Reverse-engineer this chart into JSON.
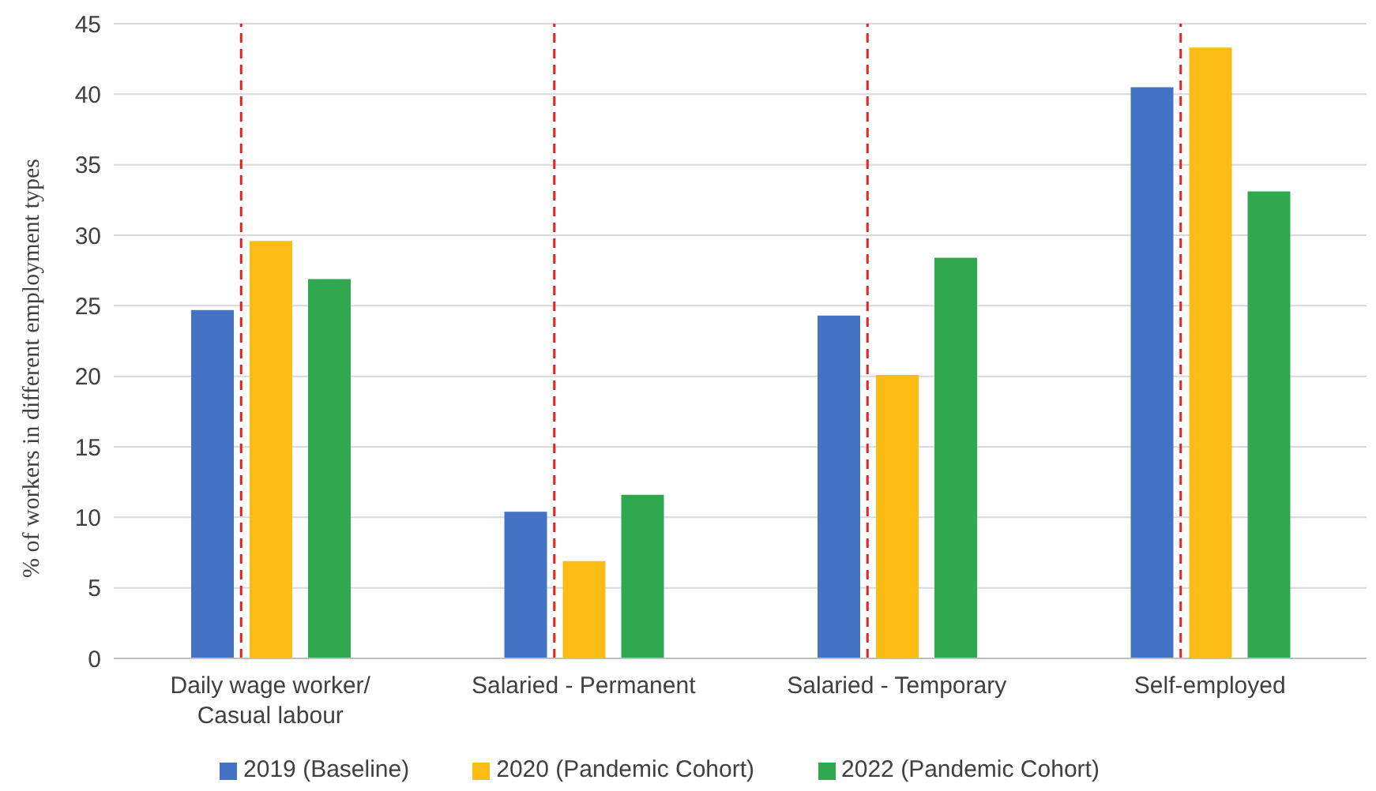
{
  "chart_data": {
    "type": "bar",
    "ylabel": "% of workers in different employment types",
    "categories": [
      "Daily wage worker/\nCasual labour",
      "Salaried - Permanent",
      "Salaried - Temporary",
      "Self-employed"
    ],
    "series": [
      {
        "name": "2019 (Baseline)",
        "color": "#4472c4",
        "values": [
          24.7,
          10.4,
          24.3,
          40.5
        ]
      },
      {
        "name": "2020 (Pandemic Cohort)",
        "color": "#fbbc15",
        "values": [
          29.6,
          6.9,
          20.1,
          43.3
        ]
      },
      {
        "name": "2022 (Pandemic Cohort)",
        "color": "#2fa84f",
        "values": [
          26.9,
          11.6,
          28.4,
          33.1
        ]
      }
    ],
    "ylim": [
      0,
      45
    ],
    "yticks": [
      0,
      5,
      10,
      15,
      20,
      25,
      30,
      35,
      40,
      45
    ],
    "grid": "y",
    "legend": "bottom",
    "ref_lines": [
      {
        "axis": "x",
        "value": "Daily wage worker/\nCasual labour",
        "color": "#e8211c",
        "line_style": "dashed"
      },
      {
        "axis": "x",
        "value": "Salaried - Permanent",
        "color": "#e8211c",
        "line_style": "dashed"
      },
      {
        "axis": "x",
        "value": "Salaried - Temporary",
        "color": "#e8211c",
        "line_style": "dashed"
      },
      {
        "axis": "x",
        "value": "Self-employed",
        "color": "#e8211c",
        "line_style": "dashed"
      }
    ]
  }
}
